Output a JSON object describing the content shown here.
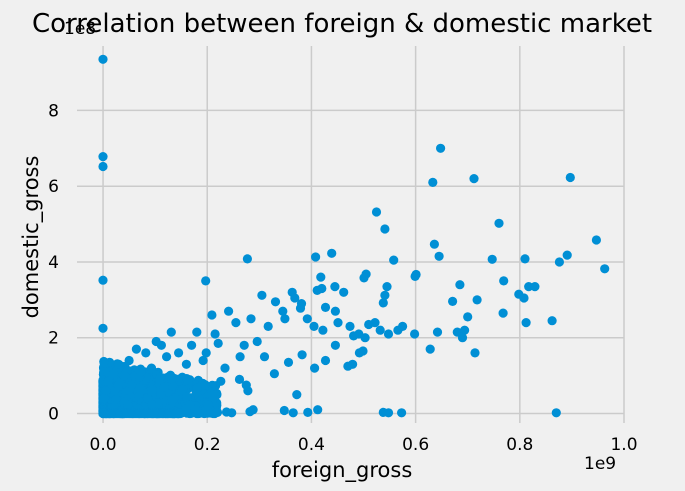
{
  "chart_data": {
    "type": "scatter",
    "title": "Correlation between foreign & domestic market",
    "xlabel": "foreign_gross",
    "ylabel": "domestic_gross",
    "x_offset_label": "1e9",
    "y_offset_label": "1e8",
    "xlim": [
      -0.05,
      1.0
    ],
    "ylim": [
      -0.25,
      9.7
    ],
    "xticks": [
      0.0,
      0.2,
      0.4,
      0.6,
      0.8,
      1.0
    ],
    "xtick_labels": [
      "0.0",
      "0.2",
      "0.4",
      "0.6",
      "0.8",
      "1.0"
    ],
    "yticks": [
      0,
      2,
      4,
      6,
      8
    ],
    "ytick_labels": [
      "0",
      "2",
      "4",
      "6",
      "8"
    ],
    "grid": true,
    "color": "#008fd5",
    "series": [
      {
        "points": [
          [
            0.0,
            9.35
          ],
          [
            0.0,
            6.78
          ],
          [
            0.0,
            6.52
          ],
          [
            0.0,
            3.52
          ],
          [
            0.0,
            2.25
          ],
          [
            0.648,
            7.0
          ],
          [
            0.633,
            6.1
          ],
          [
            0.712,
            6.2
          ],
          [
            0.897,
            6.23
          ],
          [
            0.525,
            5.32
          ],
          [
            0.541,
            4.87
          ],
          [
            0.76,
            5.02
          ],
          [
            0.947,
            4.58
          ],
          [
            0.963,
            3.82
          ],
          [
            0.891,
            4.18
          ],
          [
            0.876,
            4.0
          ],
          [
            0.636,
            4.47
          ],
          [
            0.645,
            4.15
          ],
          [
            0.558,
            4.05
          ],
          [
            0.601,
            3.67
          ],
          [
            0.599,
            3.62
          ],
          [
            0.505,
            3.68
          ],
          [
            0.501,
            3.58
          ],
          [
            0.408,
            4.13
          ],
          [
            0.439,
            4.23
          ],
          [
            0.277,
            4.08
          ],
          [
            0.197,
            3.5
          ],
          [
            0.545,
            3.35
          ],
          [
            0.541,
            3.12
          ],
          [
            0.538,
            2.92
          ],
          [
            0.462,
            3.2
          ],
          [
            0.445,
            3.35
          ],
          [
            0.418,
            3.6
          ],
          [
            0.42,
            3.3
          ],
          [
            0.411,
            3.25
          ],
          [
            0.363,
            3.2
          ],
          [
            0.368,
            3.05
          ],
          [
            0.381,
            2.9
          ],
          [
            0.379,
            2.78
          ],
          [
            0.305,
            3.12
          ],
          [
            0.331,
            2.95
          ],
          [
            0.345,
            2.7
          ],
          [
            0.317,
            2.3
          ],
          [
            0.349,
            2.5
          ],
          [
            0.392,
            2.5
          ],
          [
            0.405,
            2.3
          ],
          [
            0.422,
            2.2
          ],
          [
            0.427,
            2.8
          ],
          [
            0.446,
            2.7
          ],
          [
            0.451,
            2.4
          ],
          [
            0.474,
            2.3
          ],
          [
            0.481,
            2.05
          ],
          [
            0.491,
            2.1
          ],
          [
            0.503,
            2.0
          ],
          [
            0.51,
            2.35
          ],
          [
            0.522,
            2.4
          ],
          [
            0.532,
            2.2
          ],
          [
            0.548,
            2.1
          ],
          [
            0.566,
            2.2
          ],
          [
            0.575,
            2.3
          ],
          [
            0.598,
            2.1
          ],
          [
            0.628,
            1.7
          ],
          [
            0.642,
            2.15
          ],
          [
            0.671,
            2.96
          ],
          [
            0.68,
            2.15
          ],
          [
            0.685,
            3.4
          ],
          [
            0.69,
            2.0
          ],
          [
            0.694,
            2.2
          ],
          [
            0.7,
            2.55
          ],
          [
            0.714,
            1.6
          ],
          [
            0.718,
            3.0
          ],
          [
            0.747,
            4.07
          ],
          [
            0.768,
            2.65
          ],
          [
            0.769,
            3.5
          ],
          [
            0.798,
            3.15
          ],
          [
            0.808,
            3.05
          ],
          [
            0.81,
            4.08
          ],
          [
            0.812,
            2.4
          ],
          [
            0.817,
            3.35
          ],
          [
            0.829,
            3.35
          ],
          [
            0.862,
            2.45
          ],
          [
            0.87,
            0.02
          ],
          [
            0.479,
            1.3
          ],
          [
            0.47,
            1.25
          ],
          [
            0.492,
            1.6
          ],
          [
            0.499,
            1.65
          ],
          [
            0.406,
            1.2
          ],
          [
            0.427,
            1.4
          ],
          [
            0.446,
            1.8
          ],
          [
            0.382,
            1.55
          ],
          [
            0.356,
            1.35
          ],
          [
            0.31,
            1.5
          ],
          [
            0.329,
            1.05
          ],
          [
            0.372,
            0.5
          ],
          [
            0.393,
            0.03
          ],
          [
            0.412,
            0.1
          ],
          [
            0.365,
            0.02
          ],
          [
            0.348,
            0.08
          ],
          [
            0.538,
            0.03
          ],
          [
            0.548,
            0.02
          ],
          [
            0.573,
            0.02
          ],
          [
            0.282,
            0.05
          ],
          [
            0.247,
            0.02
          ],
          [
            0.237,
            0.04
          ],
          [
            0.219,
            0.03
          ],
          [
            0.278,
            0.6
          ],
          [
            0.288,
            0.1
          ],
          [
            0.275,
            0.75
          ],
          [
            0.262,
            0.9
          ],
          [
            0.226,
            0.85
          ],
          [
            0.234,
            1.2
          ],
          [
            0.241,
            2.7
          ],
          [
            0.255,
            2.4
          ],
          [
            0.284,
            2.5
          ],
          [
            0.296,
            1.9
          ],
          [
            0.271,
            1.8
          ],
          [
            0.263,
            1.5
          ],
          [
            0.209,
            2.6
          ],
          [
            0.215,
            2.1
          ],
          [
            0.221,
            1.85
          ],
          [
            0.198,
            1.6
          ],
          [
            0.18,
            2.15
          ],
          [
            0.192,
            1.4
          ],
          [
            0.17,
            1.8
          ],
          [
            0.16,
            1.3
          ],
          [
            0.145,
            1.6
          ],
          [
            0.131,
            2.15
          ],
          [
            0.122,
            1.5
          ],
          [
            0.112,
            1.8
          ],
          [
            0.102,
            1.9
          ],
          [
            0.093,
            1.2
          ],
          [
            0.082,
            1.6
          ],
          [
            0.073,
            1.1
          ],
          [
            0.064,
            1.7
          ],
          [
            0.05,
            1.4
          ],
          [
            0.041,
            1.0
          ],
          [
            0.03,
            1.3
          ],
          [
            0.02,
            1.05
          ],
          [
            0.01,
            0.85
          ],
          [
            0.005,
            0.6
          ],
          [
            0.002,
            0.4
          ]
        ],
        "dense_cluster": {
          "x_range": [
            0.0,
            0.22
          ],
          "y_range": [
            0.0,
            1.4
          ],
          "count": 900,
          "note_visual": "dense blob of overlapping markers near origin"
        }
      }
    ]
  }
}
